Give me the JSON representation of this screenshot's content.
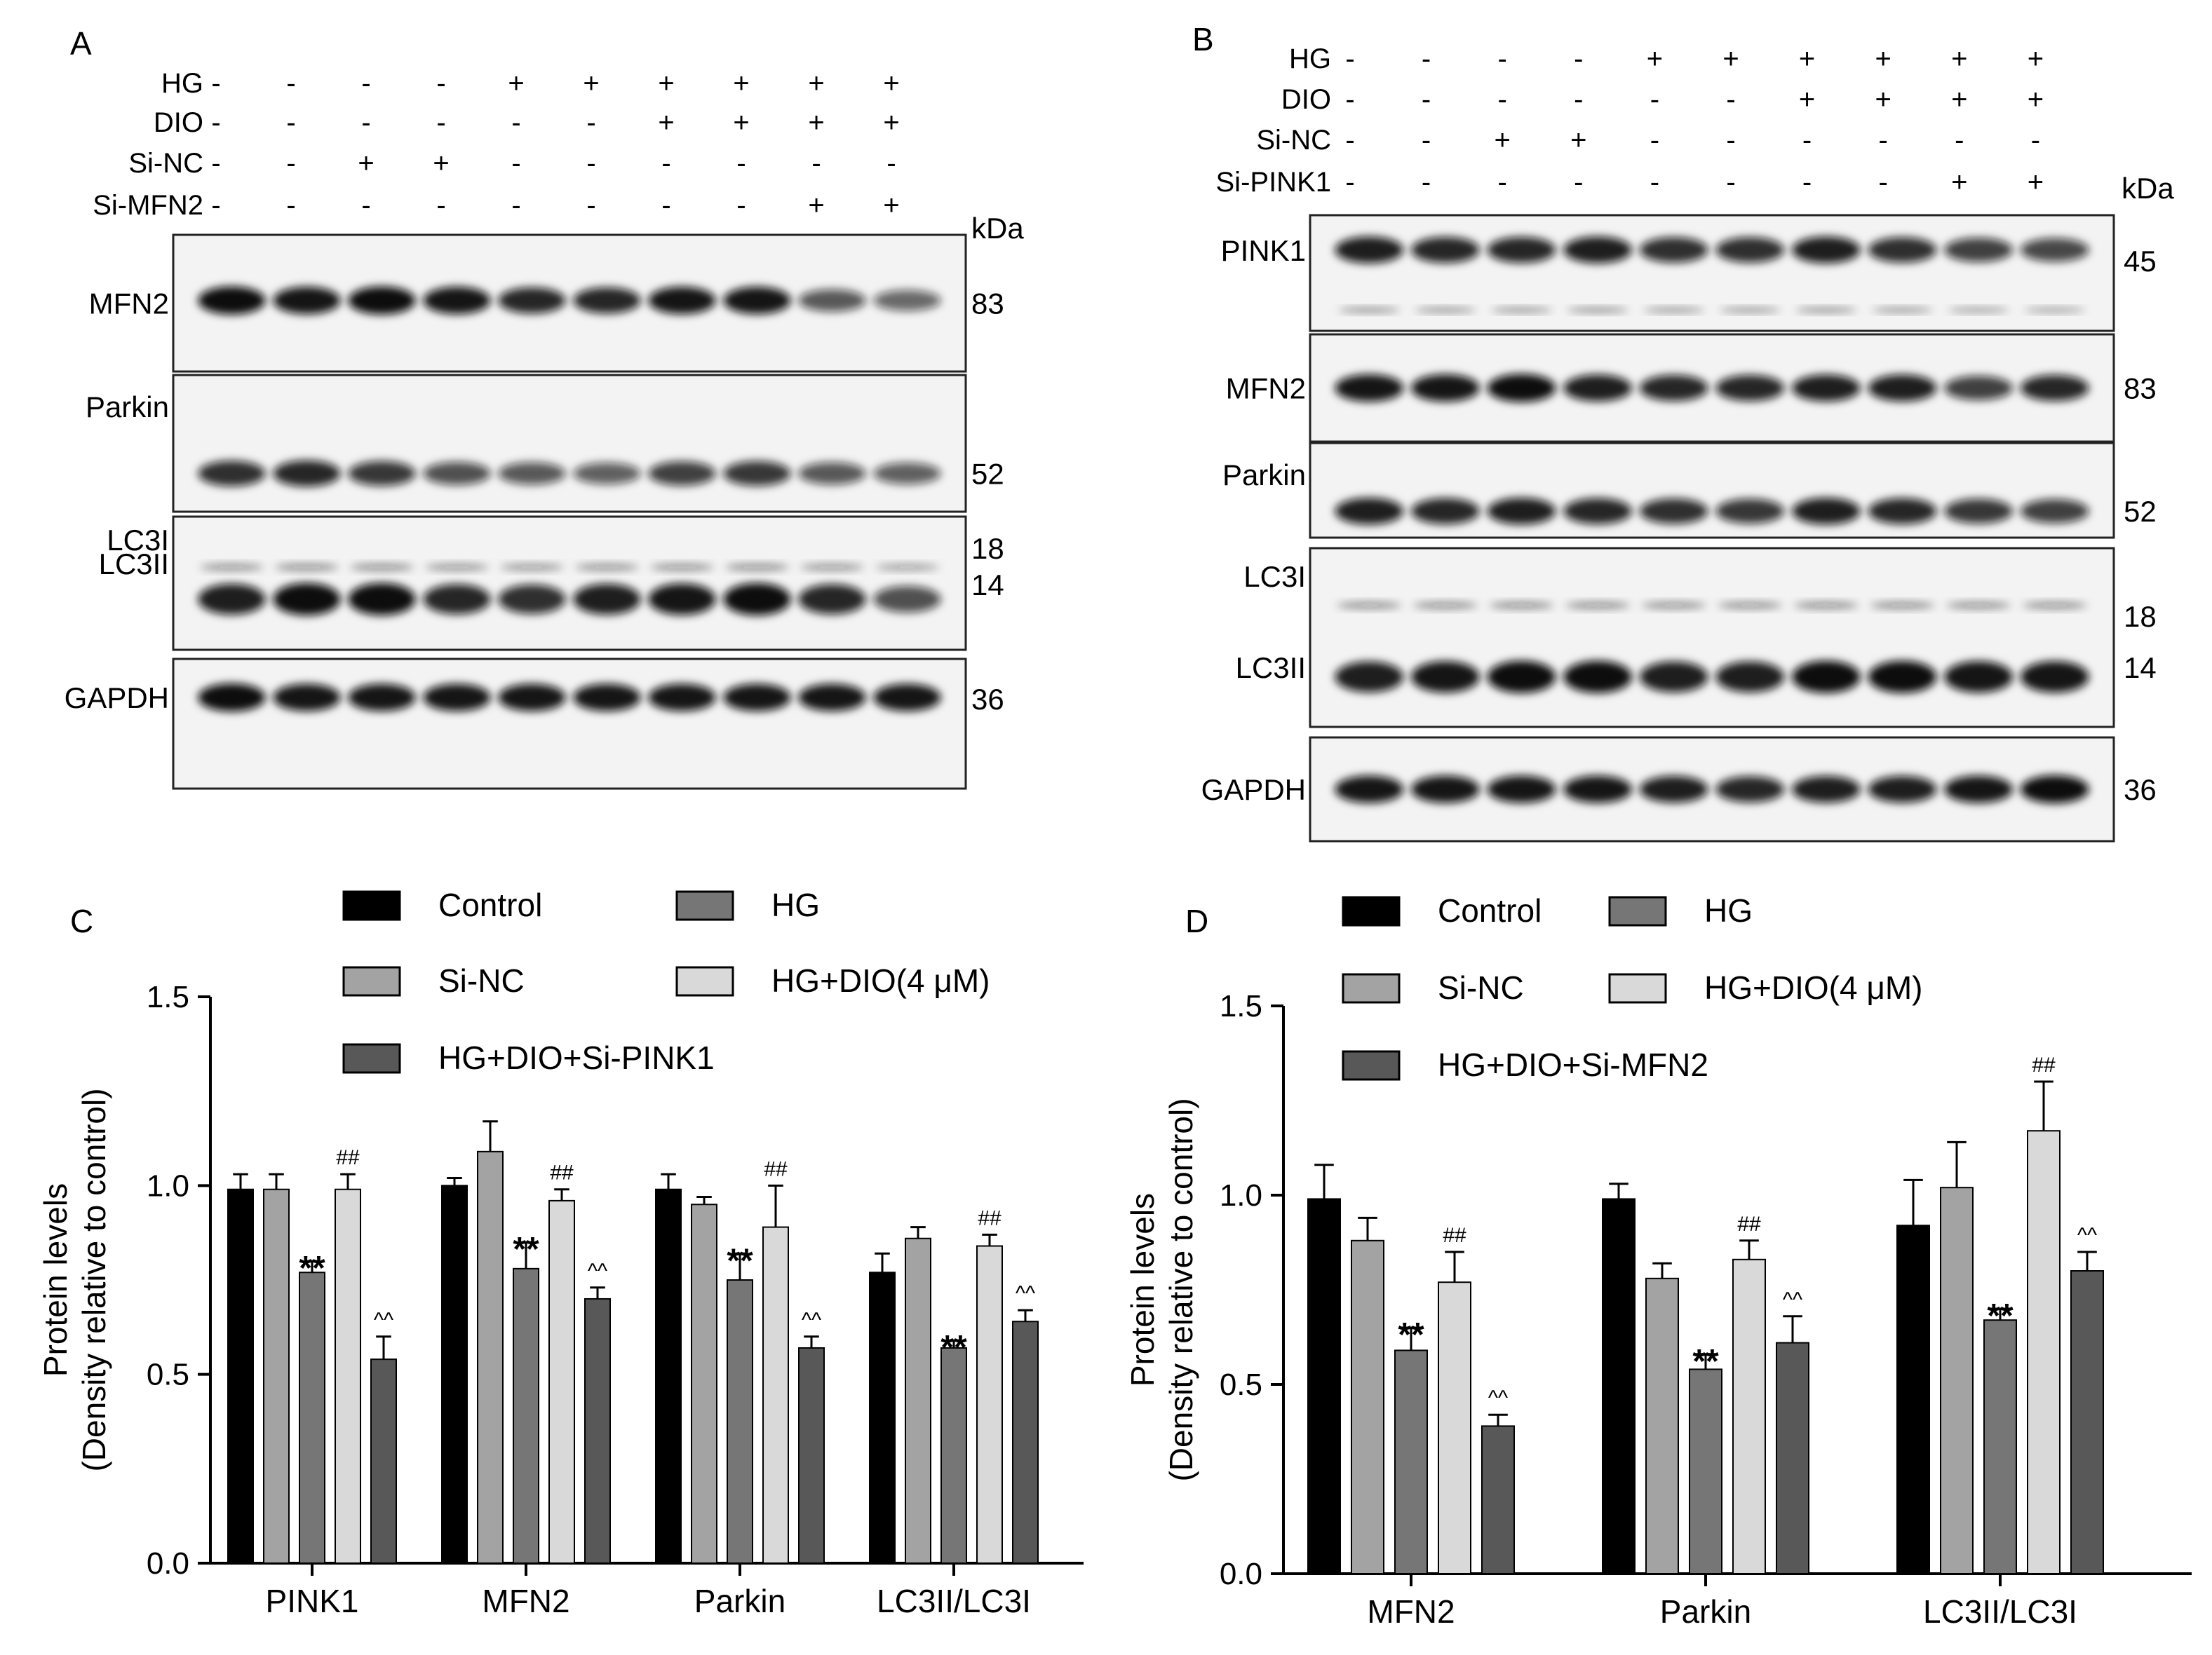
{
  "colors": {
    "control": "#000000",
    "hg": "#767676",
    "si_nc": "#a3a3a3",
    "hg_dio": "#d9d9d9",
    "hg_dio_si": "#585858",
    "blot_bg": "#f3f3f3",
    "band": "#111111"
  },
  "blots": [
    {
      "panel": "A",
      "conditions": [
        {
          "label": "HG",
          "signs": [
            "-",
            "-",
            "-",
            "-",
            "+",
            "+",
            "+",
            "+",
            "+",
            "+"
          ]
        },
        {
          "label": "DIO",
          "signs": [
            "-",
            "-",
            "-",
            "-",
            "-",
            "-",
            "+",
            "+",
            "+",
            "+"
          ]
        },
        {
          "label": "Si-NC",
          "signs": [
            "-",
            "-",
            "+",
            "+",
            "-",
            "-",
            "-",
            "-",
            "-",
            "-"
          ]
        },
        {
          "label": "Si-MFN2",
          "signs": [
            "-",
            "-",
            "-",
            "-",
            "-",
            "-",
            "-",
            "-",
            "+",
            "+"
          ]
        }
      ],
      "kda_label": "kDa",
      "rows": [
        {
          "labels": [
            "MFN2"
          ],
          "kda": [
            "83"
          ],
          "intensity": [
            1.0,
            0.95,
            1.0,
            0.95,
            0.85,
            0.85,
            0.95,
            0.95,
            0.55,
            0.45
          ]
        },
        {
          "labels": [
            "Parkin"
          ],
          "kda": [
            "52"
          ],
          "intensity": [
            0.8,
            0.85,
            0.75,
            0.6,
            0.55,
            0.5,
            0.7,
            0.75,
            0.55,
            0.5
          ]
        },
        {
          "labels": [
            "LC3I",
            "LC3II"
          ],
          "kda": [
            "18",
            "14"
          ],
          "intensity": [
            0.9,
            1.0,
            1.0,
            0.85,
            0.8,
            0.9,
            0.95,
            1.0,
            0.85,
            0.6
          ]
        },
        {
          "labels": [
            "GAPDH"
          ],
          "kda": [
            "36"
          ],
          "intensity": [
            1.0,
            0.95,
            0.95,
            0.95,
            0.95,
            0.95,
            0.95,
            0.95,
            0.95,
            0.95
          ]
        }
      ]
    },
    {
      "panel": "B",
      "conditions": [
        {
          "label": "HG",
          "signs": [
            "-",
            "-",
            "-",
            "-",
            "+",
            "+",
            "+",
            "+",
            "+",
            "+"
          ]
        },
        {
          "label": "DIO",
          "signs": [
            "-",
            "-",
            "-",
            "-",
            "-",
            "-",
            "+",
            "+",
            "+",
            "+"
          ]
        },
        {
          "label": "Si-NC",
          "signs": [
            "-",
            "-",
            "+",
            "+",
            "-",
            "-",
            "-",
            "-",
            "-",
            "-"
          ]
        },
        {
          "label": "Si-PINK1",
          "signs": [
            "-",
            "-",
            "-",
            "-",
            "-",
            "-",
            "-",
            "-",
            "+",
            "+"
          ]
        }
      ],
      "kda_label": "kDa",
      "rows": [
        {
          "labels": [
            "PINK1"
          ],
          "kda": [
            "45"
          ],
          "intensity": [
            0.9,
            0.85,
            0.85,
            0.9,
            0.8,
            0.8,
            0.9,
            0.8,
            0.7,
            0.65
          ]
        },
        {
          "labels": [
            "MFN2"
          ],
          "kda": [
            "83"
          ],
          "intensity": [
            0.95,
            0.95,
            1.0,
            0.9,
            0.85,
            0.85,
            0.9,
            0.9,
            0.7,
            0.85
          ]
        },
        {
          "labels": [
            "Parkin"
          ],
          "kda": [
            "52"
          ],
          "intensity": [
            0.9,
            0.85,
            0.9,
            0.85,
            0.8,
            0.75,
            0.9,
            0.85,
            0.75,
            0.7
          ]
        },
        {
          "labels": [
            "LC3I",
            "LC3II"
          ],
          "kda": [
            "18",
            "14"
          ],
          "intensity": [
            0.9,
            0.95,
            1.0,
            1.0,
            0.9,
            0.9,
            1.0,
            1.0,
            0.95,
            0.95
          ]
        },
        {
          "labels": [
            "GAPDH"
          ],
          "kda": [
            "36"
          ],
          "intensity": [
            0.95,
            0.95,
            0.95,
            0.95,
            0.9,
            0.85,
            0.9,
            0.9,
            0.95,
            1.0
          ]
        }
      ]
    }
  ],
  "chart_data": [
    {
      "panel": "C",
      "type": "bar",
      "ylabel": "Protein levels",
      "ylabel2": "(Density relative to control)",
      "ylim": [
        0,
        1.5
      ],
      "yticks": [
        "0.0",
        "0.5",
        "1.0",
        "1.5"
      ],
      "categories": [
        "PINK1",
        "MFN2",
        "Parkin",
        "LC3II/LC3I"
      ],
      "series": [
        {
          "name": "Control",
          "color_key": "control",
          "values": [
            0.99,
            1.0,
            0.99,
            0.77
          ],
          "errors": [
            0.04,
            0.02,
            0.04,
            0.05
          ],
          "marks": [
            "",
            "",
            "",
            ""
          ]
        },
        {
          "name": "Si-NC",
          "color_key": "si_nc",
          "values": [
            0.99,
            1.09,
            0.95,
            0.86
          ],
          "errors": [
            0.04,
            0.08,
            0.02,
            0.03
          ],
          "marks": [
            "",
            "",
            "",
            ""
          ]
        },
        {
          "name": "HG",
          "color_key": "hg",
          "values": [
            0.77,
            0.78,
            0.75,
            0.57
          ],
          "errors": [
            0.03,
            0.07,
            0.07,
            0.02
          ],
          "marks": [
            "**",
            "**",
            "**",
            "**"
          ]
        },
        {
          "name": "HG+DIO(4 μM)",
          "color_key": "hg_dio",
          "values": [
            0.99,
            0.96,
            0.89,
            0.84
          ],
          "errors": [
            0.04,
            0.03,
            0.11,
            0.03
          ],
          "marks": [
            "##",
            "##",
            "##",
            "##"
          ]
        },
        {
          "name": "HG+DIO+Si-PINK1",
          "color_key": "hg_dio_si",
          "values": [
            0.54,
            0.7,
            0.57,
            0.64
          ],
          "errors": [
            0.06,
            0.03,
            0.03,
            0.03
          ],
          "marks": [
            "^^",
            "^^",
            "^^",
            "^^"
          ]
        }
      ],
      "legend": [
        {
          "label": "Control",
          "color_key": "control"
        },
        {
          "label": "HG",
          "color_key": "hg"
        },
        {
          "label": "Si-NC",
          "color_key": "si_nc"
        },
        {
          "label": "HG+DIO(4 μM)",
          "color_key": "hg_dio"
        },
        {
          "label": "HG+DIO+Si-PINK1",
          "color_key": "hg_dio_si"
        }
      ]
    },
    {
      "panel": "D",
      "type": "bar",
      "ylabel": "Protein levels",
      "ylabel2": "(Density relative to control)",
      "ylim": [
        0,
        1.5
      ],
      "yticks": [
        "0.0",
        "0.5",
        "1.0",
        "1.5"
      ],
      "categories": [
        "MFN2",
        "Parkin",
        "LC3II/LC3I"
      ],
      "series": [
        {
          "name": "Control",
          "color_key": "control",
          "values": [
            0.99,
            0.99,
            0.92
          ],
          "errors": [
            0.09,
            0.04,
            0.12
          ],
          "marks": [
            "",
            "",
            ""
          ]
        },
        {
          "name": "Si-NC",
          "color_key": "si_nc",
          "values": [
            0.88,
            0.78,
            1.02
          ],
          "errors": [
            0.06,
            0.04,
            0.12
          ],
          "marks": [
            "",
            "",
            ""
          ]
        },
        {
          "name": "HG",
          "color_key": "hg",
          "values": [
            0.59,
            0.54,
            0.67
          ],
          "errors": [
            0.06,
            0.04,
            0.03
          ],
          "marks": [
            "**",
            "**",
            "**"
          ]
        },
        {
          "name": "HG+DIO(4 μM)",
          "color_key": "hg_dio",
          "values": [
            0.77,
            0.83,
            1.17
          ],
          "errors": [
            0.08,
            0.05,
            0.13
          ],
          "marks": [
            "##",
            "##",
            "##"
          ]
        },
        {
          "name": "HG+DIO+Si-MFN2",
          "color_key": "hg_dio_si",
          "values": [
            0.39,
            0.61,
            0.8
          ],
          "errors": [
            0.03,
            0.07,
            0.05
          ],
          "marks": [
            "^^",
            "^^",
            "^^"
          ]
        }
      ],
      "legend": [
        {
          "label": "Control",
          "color_key": "control"
        },
        {
          "label": "HG",
          "color_key": "hg"
        },
        {
          "label": "Si-NC",
          "color_key": "si_nc"
        },
        {
          "label": "HG+DIO(4 μM)",
          "color_key": "hg_dio"
        },
        {
          "label": "HG+DIO+Si-MFN2",
          "color_key": "hg_dio_si"
        }
      ]
    }
  ]
}
